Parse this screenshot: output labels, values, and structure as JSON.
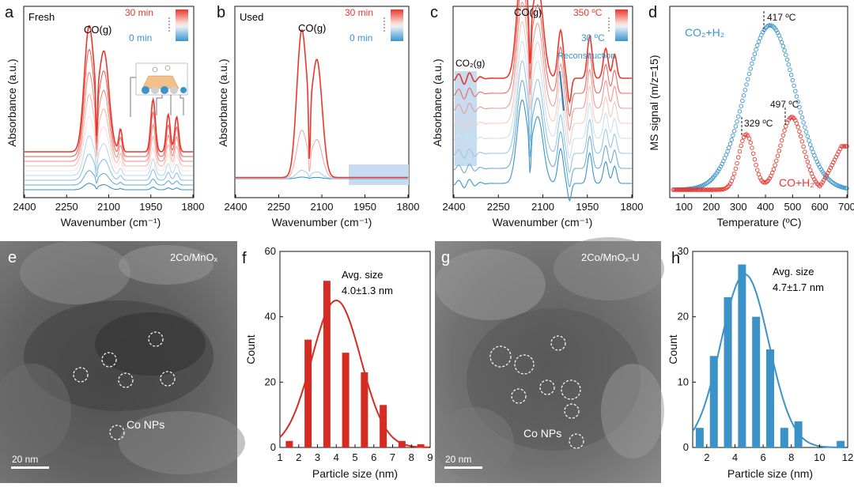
{
  "figure": {
    "panel_labels": [
      "a",
      "b",
      "c",
      "d",
      "e",
      "f",
      "g",
      "h"
    ],
    "colors": {
      "red": "#e8382e",
      "blue": "#3a94cc",
      "tem_bg": "#5a5a5a",
      "bar_red": "#d62b22",
      "bar_blue": "#3b92c9",
      "shade": "#c7dcef"
    }
  },
  "chart_data": [
    {
      "id": "a",
      "type": "line",
      "panel": "a",
      "title": "Fresh",
      "xlabel": "Wavenumber (cm⁻¹)",
      "ylabel": "Absorbance (a.u.)",
      "xlim": [
        2400,
        1800
      ],
      "xticks": [
        2400,
        2250,
        2100,
        1950,
        1800
      ],
      "peak_label": "CO(g)",
      "legend_top": "30 min",
      "legend_bottom": "0 min",
      "peaks_cm": [
        2170,
        2117,
        2060,
        1940,
        1890,
        1860
      ],
      "series_count": 9
    },
    {
      "id": "b",
      "type": "line",
      "panel": "b",
      "title": "Used",
      "xlabel": "Wavenumber (cm⁻¹)",
      "ylabel": "Absorbance (a.u.)",
      "xlim": [
        2400,
        1800
      ],
      "xticks": [
        2400,
        2250,
        2100,
        1950,
        1800
      ],
      "peak_label": "CO(g)",
      "legend_top": "30 min",
      "legend_bottom": "0 min",
      "peaks_cm": [
        2170,
        2117
      ],
      "series_count": 4
    },
    {
      "id": "c",
      "type": "line",
      "panel": "c",
      "xlabel": "Wavenumber (cm⁻¹)",
      "ylabel": "Absorbance (a.u.)",
      "xlim": [
        2400,
        1800
      ],
      "xticks": [
        2400,
        2250,
        2100,
        1950,
        1800
      ],
      "peak_label": "CO(g)",
      "co2_label": "CO₂(g)",
      "reconstruction_label": "Reconstruction",
      "legend_top": "350 ºC",
      "legend_bottom": "30 ºC",
      "series_count": 8
    },
    {
      "id": "d",
      "type": "scatter",
      "panel": "d",
      "xlabel": "Temperature (ºC)",
      "ylabel": "MS signal (m/z=15)",
      "xlim": [
        50,
        700
      ],
      "xticks": [
        100,
        200,
        300,
        400,
        500,
        600,
        700
      ],
      "series": [
        {
          "name": "CO₂+H₂",
          "peaks_c": [
            417
          ]
        },
        {
          "name": "CO+H₂",
          "peaks_c": [
            329,
            497
          ]
        }
      ],
      "annotations": [
        "417 ºC",
        "329 ºC",
        "497 ºC"
      ]
    },
    {
      "id": "f",
      "type": "bar",
      "panel": "f",
      "xlabel": "Particle size (nm)",
      "ylabel": "Count",
      "xlim": [
        1,
        9
      ],
      "ylim": [
        0,
        60
      ],
      "xticks": [
        1,
        2,
        3,
        4,
        5,
        6,
        7,
        8,
        9
      ],
      "yticks": [
        0,
        20,
        40,
        60
      ],
      "x": [
        1.5,
        2.5,
        3.5,
        4.5,
        5.5,
        6.5,
        7.5,
        8.5
      ],
      "values": [
        2,
        33,
        51,
        29,
        23,
        13,
        2,
        1
      ],
      "fit": {
        "mean": 4.0,
        "sd": 1.3,
        "peak": 45
      },
      "text_line1": "Avg. size",
      "text_line2": "4.0±1.3 nm"
    },
    {
      "id": "h",
      "type": "bar",
      "panel": "h",
      "xlabel": "Particle size (nm)",
      "ylabel": "Count",
      "xlim": [
        1,
        12
      ],
      "ylim": [
        0,
        30
      ],
      "xticks": [
        2,
        4,
        6,
        8,
        10,
        12
      ],
      "yticks": [
        0,
        10,
        20,
        30
      ],
      "x": [
        1.5,
        2.5,
        3.5,
        4.5,
        5.5,
        6.5,
        7.5,
        8.5,
        11.5
      ],
      "values": [
        3,
        14,
        23,
        28,
        20,
        15,
        3,
        4,
        1
      ],
      "fit": {
        "mean": 4.7,
        "sd": 1.7,
        "peak": 26.5
      },
      "text_line1": "Avg. size",
      "text_line2": "4.7±1.7 nm"
    }
  ],
  "images": [
    {
      "panel": "e",
      "title": "2Co/MnOₓ",
      "np_label": "Co NPs",
      "scale_bar": "20 nm"
    },
    {
      "panel": "g",
      "title": "2Co/MnOₓ-U",
      "np_label": "Co NPs",
      "scale_bar": "20 nm"
    }
  ]
}
